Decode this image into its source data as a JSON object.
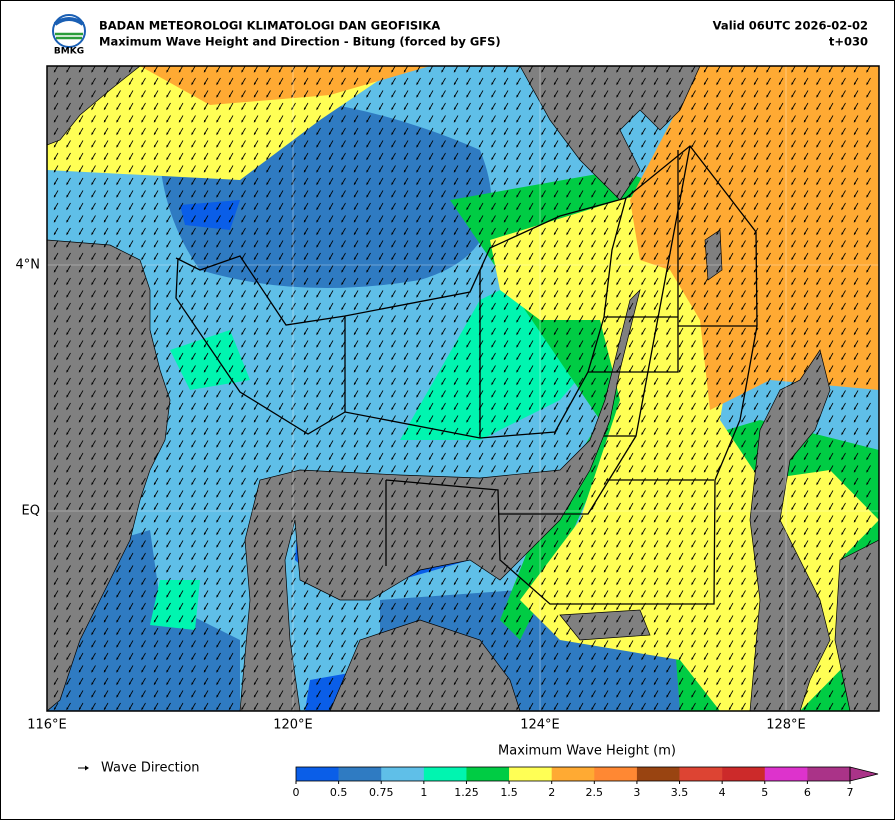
{
  "header": {
    "agency": "BADAN METEOROLOGI KLIMATOLOGI DAN GEOFISIKA",
    "title": "Maximum Wave Height and Direction - Bitung (forced by GFS)",
    "valid": "Valid 06UTC 2026-02-02",
    "lead": "t+030",
    "logo_text": "BMKG"
  },
  "map": {
    "x_labels": [
      "116°E",
      "120°E",
      "124°E",
      "128°E"
    ],
    "y_labels": [
      "4°N",
      "EQ"
    ]
  },
  "legend": {
    "arrow_label": "Wave Direction"
  },
  "colorbar": {
    "title": "Maximum Wave Height (m)",
    "ticks": [
      0,
      0.5,
      0.75,
      1,
      1.25,
      1.5,
      2,
      2.5,
      3,
      3.5,
      4,
      5,
      6,
      7
    ],
    "colors": [
      "#0a5ee8",
      "#2f7bc2",
      "#5fbfe8",
      "#00f5b0",
      "#00cc44",
      "#ffff55",
      "#ffaa33",
      "#ff8833",
      "#994411",
      "#dd4433",
      "#cc2a2a",
      "#dd33cc",
      "#aa3388"
    ]
  }
}
